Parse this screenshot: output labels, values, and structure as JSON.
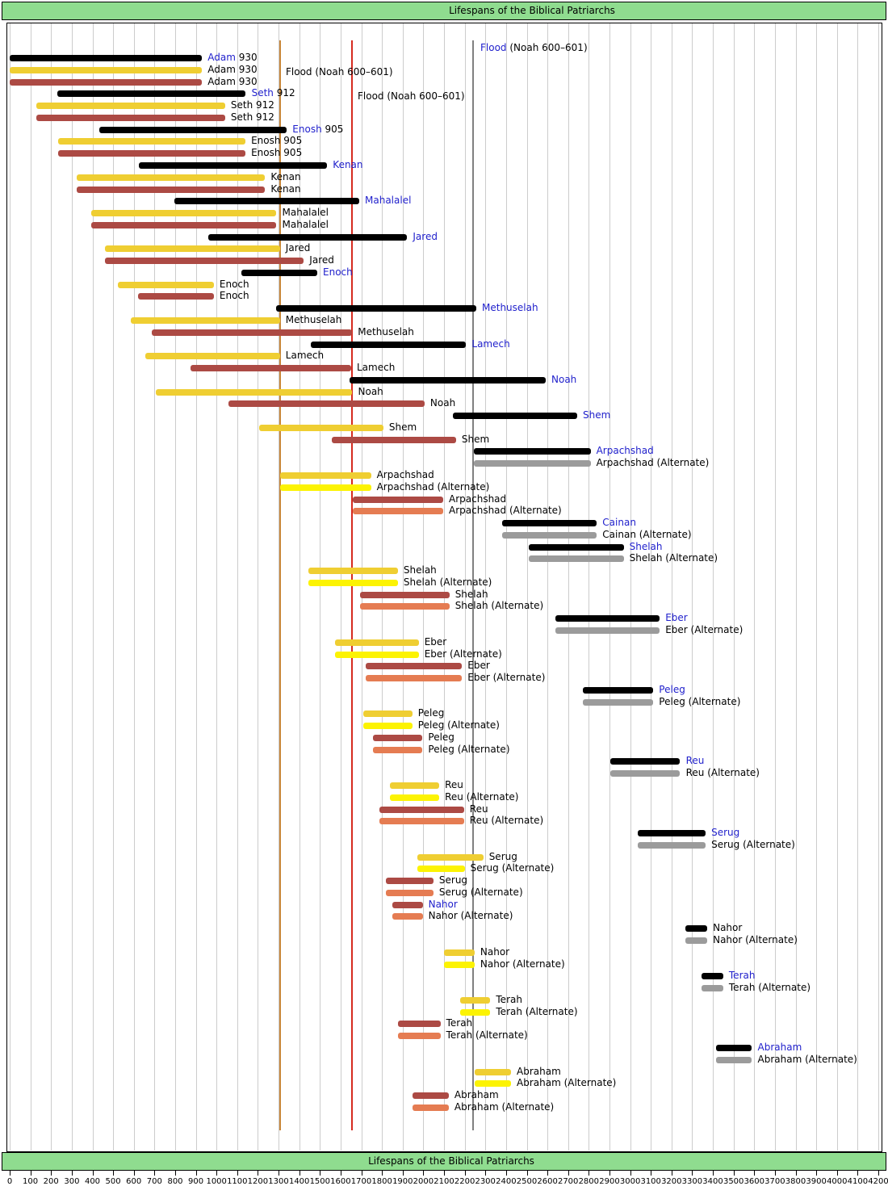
{
  "header": {
    "title": "Lifespans of the Biblical Patriarchs"
  },
  "footer": {
    "title": "Lifespans of the Biblical Patriarchs"
  },
  "chart_data": {
    "type": "bar",
    "subtype": "horizontal-range-timeline",
    "title": "Lifespans of the Biblical Patriarchs",
    "xlabel": "",
    "ylabel": "",
    "grid": true,
    "x_axis": {
      "min": 0,
      "max": 4200,
      "tick_step": 100
    },
    "colors": {
      "black": "#000000",
      "grey": "#9b9b9b",
      "gold": "#efce32",
      "yellow": "#fcf303",
      "brick": "#ac4a44",
      "salmon": "#e57c52"
    },
    "label_blue": "#2121cc",
    "flood_lines": [
      {
        "year": 1307,
        "color": "#c8873a"
      },
      {
        "year": 1656,
        "color": "#d62b20"
      },
      {
        "year": 2242,
        "color": "#808080"
      }
    ],
    "flood_labels": [
      {
        "blue": "Flood",
        "black": " (Noah 600–601)",
        "x": 595,
        "y": 52
      },
      {
        "blue": "",
        "black": "Flood (Noah 600–601)",
        "x": 354,
        "y": 82
      },
      {
        "blue": "",
        "black": "Flood (Noah 600–601)",
        "x": 443,
        "y": 112
      }
    ],
    "rows": [
      {
        "label": "Adam",
        "num": " 930",
        "blue": true,
        "series": "black",
        "start": 0,
        "end": 930
      },
      {
        "label": "Adam 930",
        "blue": false,
        "series": "gold",
        "start": 0,
        "end": 930
      },
      {
        "label": "Adam 930",
        "blue": false,
        "series": "brick",
        "start": 0,
        "end": 930
      },
      {
        "label": "Seth",
        "num": " 912",
        "blue": true,
        "series": "black",
        "start": 230,
        "end": 1142
      },
      {
        "label": "Seth 912",
        "blue": false,
        "series": "gold",
        "start": 130,
        "end": 1042
      },
      {
        "label": "Seth 912",
        "blue": false,
        "series": "brick",
        "start": 130,
        "end": 1042
      },
      {
        "label": "Enosh",
        "num": " 905",
        "blue": true,
        "series": "black",
        "start": 435,
        "end": 1340
      },
      {
        "label": "Enosh 905",
        "blue": false,
        "series": "gold",
        "start": 235,
        "end": 1140
      },
      {
        "label": "Enosh 905",
        "blue": false,
        "series": "brick",
        "start": 235,
        "end": 1140
      },
      {
        "label": "Kenan",
        "blue": true,
        "series": "black",
        "start": 625,
        "end": 1535
      },
      {
        "label": "Kenan",
        "blue": false,
        "series": "gold",
        "start": 325,
        "end": 1235
      },
      {
        "label": "Kenan",
        "blue": false,
        "series": "brick",
        "start": 325,
        "end": 1235
      },
      {
        "label": "Mahalalel",
        "blue": true,
        "series": "black",
        "start": 795,
        "end": 1690
      },
      {
        "label": "Mahalalel",
        "blue": false,
        "series": "gold",
        "start": 395,
        "end": 1290
      },
      {
        "label": "Mahalalel",
        "blue": false,
        "series": "brick",
        "start": 395,
        "end": 1290
      },
      {
        "label": "Jared",
        "blue": true,
        "series": "black",
        "start": 960,
        "end": 1922
      },
      {
        "label": "Jared",
        "blue": false,
        "series": "gold",
        "start": 460,
        "end": 1307
      },
      {
        "label": "Jared",
        "blue": false,
        "series": "brick",
        "start": 460,
        "end": 1422
      },
      {
        "label": "Enoch",
        "blue": true,
        "series": "black",
        "start": 1122,
        "end": 1487
      },
      {
        "label": "Enoch",
        "blue": false,
        "series": "gold",
        "start": 522,
        "end": 987
      },
      {
        "label": "Enoch",
        "blue": false,
        "series": "brick",
        "start": 622,
        "end": 987
      },
      {
        "label": "Methuselah",
        "blue": true,
        "series": "black",
        "start": 1287,
        "end": 2256
      },
      {
        "label": "Methuselah",
        "blue": false,
        "series": "gold",
        "start": 587,
        "end": 1307
      },
      {
        "label": "Methuselah",
        "blue": false,
        "series": "brick",
        "start": 687,
        "end": 1656
      },
      {
        "label": "Lamech",
        "blue": true,
        "series": "black",
        "start": 1454,
        "end": 2207
      },
      {
        "label": "Lamech",
        "blue": false,
        "series": "gold",
        "start": 654,
        "end": 1307
      },
      {
        "label": "Lamech",
        "blue": false,
        "series": "brick",
        "start": 874,
        "end": 1651
      },
      {
        "label": "Noah",
        "blue": true,
        "series": "black",
        "start": 1642,
        "end": 2592
      },
      {
        "label": "Noah",
        "blue": false,
        "series": "gold",
        "start": 707,
        "end": 1657
      },
      {
        "label": "Noah",
        "blue": false,
        "series": "brick",
        "start": 1056,
        "end": 2006
      },
      {
        "label": "Shem",
        "blue": true,
        "series": "black",
        "start": 2144,
        "end": 2744
      },
      {
        "label": "Shem",
        "blue": false,
        "series": "gold",
        "start": 1207,
        "end": 1807
      },
      {
        "label": "Shem",
        "blue": false,
        "series": "brick",
        "start": 1558,
        "end": 2158
      },
      {
        "label": "Arpachshad",
        "blue": true,
        "series": "black",
        "start": 2244,
        "end": 2809
      },
      {
        "label": "Arpachshad (Alternate)",
        "blue": false,
        "series": "grey",
        "start": 2244,
        "end": 2809
      },
      {
        "label": "Arpachshad",
        "blue": false,
        "series": "gold",
        "start": 1309,
        "end": 1747
      },
      {
        "label": "Arpachshad (Alternate)",
        "blue": false,
        "series": "yellow",
        "start": 1309,
        "end": 1747
      },
      {
        "label": "Arpachshad",
        "blue": false,
        "series": "brick",
        "start": 1658,
        "end": 2096
      },
      {
        "label": "Arpachshad (Alternate)",
        "blue": false,
        "series": "salmon",
        "start": 1658,
        "end": 2096
      },
      {
        "label": "Cainan",
        "blue": true,
        "series": "black",
        "start": 2379,
        "end": 2839
      },
      {
        "label": "Cainan (Alternate)",
        "blue": false,
        "series": "grey",
        "start": 2379,
        "end": 2839
      },
      {
        "label": "Shelah",
        "blue": true,
        "series": "black",
        "start": 2509,
        "end": 2969
      },
      {
        "label": "Shelah (Alternate)",
        "blue": false,
        "series": "grey",
        "start": 2509,
        "end": 2969
      },
      {
        "label": "Shelah",
        "blue": false,
        "series": "gold",
        "start": 1444,
        "end": 1877
      },
      {
        "label": "Shelah (Alternate)",
        "blue": false,
        "series": "yellow",
        "start": 1444,
        "end": 1877
      },
      {
        "label": "Shelah",
        "blue": false,
        "series": "brick",
        "start": 1693,
        "end": 2126
      },
      {
        "label": "Shelah (Alternate)",
        "blue": false,
        "series": "salmon",
        "start": 1693,
        "end": 2126
      },
      {
        "label": "Eber",
        "blue": true,
        "series": "black",
        "start": 2639,
        "end": 3143
      },
      {
        "label": "Eber (Alternate)",
        "blue": false,
        "series": "grey",
        "start": 2639,
        "end": 3143
      },
      {
        "label": "Eber",
        "blue": false,
        "series": "gold",
        "start": 1574,
        "end": 1978
      },
      {
        "label": "Eber (Alternate)",
        "blue": false,
        "series": "yellow",
        "start": 1574,
        "end": 1978
      },
      {
        "label": "Eber",
        "blue": false,
        "series": "brick",
        "start": 1723,
        "end": 2187
      },
      {
        "label": "Eber (Alternate)",
        "blue": false,
        "series": "salmon",
        "start": 1723,
        "end": 2187
      },
      {
        "label": "Peleg",
        "blue": true,
        "series": "black",
        "start": 2773,
        "end": 3112
      },
      {
        "label": "Peleg (Alternate)",
        "blue": false,
        "series": "grey",
        "start": 2773,
        "end": 3112
      },
      {
        "label": "Peleg",
        "blue": false,
        "series": "gold",
        "start": 1708,
        "end": 1947
      },
      {
        "label": "Peleg (Alternate)",
        "blue": false,
        "series": "yellow",
        "start": 1708,
        "end": 1947
      },
      {
        "label": "Peleg",
        "blue": false,
        "series": "brick",
        "start": 1757,
        "end": 1996
      },
      {
        "label": "Peleg (Alternate)",
        "blue": false,
        "series": "salmon",
        "start": 1757,
        "end": 1996
      },
      {
        "label": "Reu",
        "blue": true,
        "series": "black",
        "start": 2903,
        "end": 3242
      },
      {
        "label": "Reu (Alternate)",
        "blue": false,
        "series": "grey",
        "start": 2903,
        "end": 3242
      },
      {
        "label": "Reu",
        "blue": false,
        "series": "gold",
        "start": 1838,
        "end": 2077
      },
      {
        "label": "Reu (Alternate)",
        "blue": false,
        "series": "yellow",
        "start": 1838,
        "end": 2077
      },
      {
        "label": "Reu",
        "blue": false,
        "series": "brick",
        "start": 1787,
        "end": 2197
      },
      {
        "label": "Reu (Alternate)",
        "blue": false,
        "series": "salmon",
        "start": 1787,
        "end": 2197
      },
      {
        "label": "Serug",
        "blue": true,
        "series": "black",
        "start": 3035,
        "end": 3365
      },
      {
        "label": "Serug (Alternate)",
        "blue": false,
        "series": "grey",
        "start": 3035,
        "end": 3365
      },
      {
        "label": "Serug",
        "blue": false,
        "series": "gold",
        "start": 1970,
        "end": 2290
      },
      {
        "label": "Serug (Alternate)",
        "blue": false,
        "series": "yellow",
        "start": 1970,
        "end": 2200
      },
      {
        "label": "Serug",
        "blue": false,
        "series": "brick",
        "start": 1819,
        "end": 2049
      },
      {
        "label": "Serug (Alternate)",
        "blue": false,
        "series": "salmon",
        "start": 1819,
        "end": 2049
      },
      {
        "label": "Nahor",
        "blue": true,
        "series": "brick",
        "start": 1849,
        "end": 1997
      },
      {
        "label": "Nahor (Alternate)",
        "blue": false,
        "series": "salmon",
        "start": 1849,
        "end": 1997
      },
      {
        "label": "Nahor",
        "blue": false,
        "series": "black",
        "start": 3265,
        "end": 3373
      },
      {
        "label": "Nahor (Alternate)",
        "blue": false,
        "series": "grey",
        "start": 3265,
        "end": 3373
      },
      {
        "label": "Nahor",
        "blue": false,
        "series": "gold",
        "start": 2100,
        "end": 2248
      },
      {
        "label": "Nahor (Alternate)",
        "blue": false,
        "series": "yellow",
        "start": 2100,
        "end": 2248
      },
      {
        "label": "Terah",
        "blue": true,
        "series": "black",
        "start": 3345,
        "end": 3450
      },
      {
        "label": "Terah (Alternate)",
        "blue": false,
        "series": "grey",
        "start": 3345,
        "end": 3450
      },
      {
        "label": "Terah",
        "blue": false,
        "series": "gold",
        "start": 2179,
        "end": 2324
      },
      {
        "label": "Terah (Alternate)",
        "blue": false,
        "series": "yellow",
        "start": 2179,
        "end": 2324
      },
      {
        "label": "Terah",
        "blue": false,
        "series": "brick",
        "start": 1878,
        "end": 2083
      },
      {
        "label": "Terah (Alternate)",
        "blue": false,
        "series": "salmon",
        "start": 1878,
        "end": 2083
      },
      {
        "label": "Abraham",
        "blue": true,
        "series": "black",
        "start": 3414,
        "end": 3589
      },
      {
        "label": "Abraham (Alternate)",
        "blue": false,
        "series": "grey",
        "start": 3414,
        "end": 3589
      },
      {
        "label": "Abraham",
        "blue": false,
        "series": "gold",
        "start": 2249,
        "end": 2424
      },
      {
        "label": "Abraham (Alternate)",
        "blue": false,
        "series": "yellow",
        "start": 2249,
        "end": 2424
      },
      {
        "label": "Abraham",
        "blue": false,
        "series": "brick",
        "start": 1948,
        "end": 2123
      },
      {
        "label": "Abraham (Alternate)",
        "blue": false,
        "series": "salmon",
        "start": 1948,
        "end": 2123
      }
    ]
  }
}
